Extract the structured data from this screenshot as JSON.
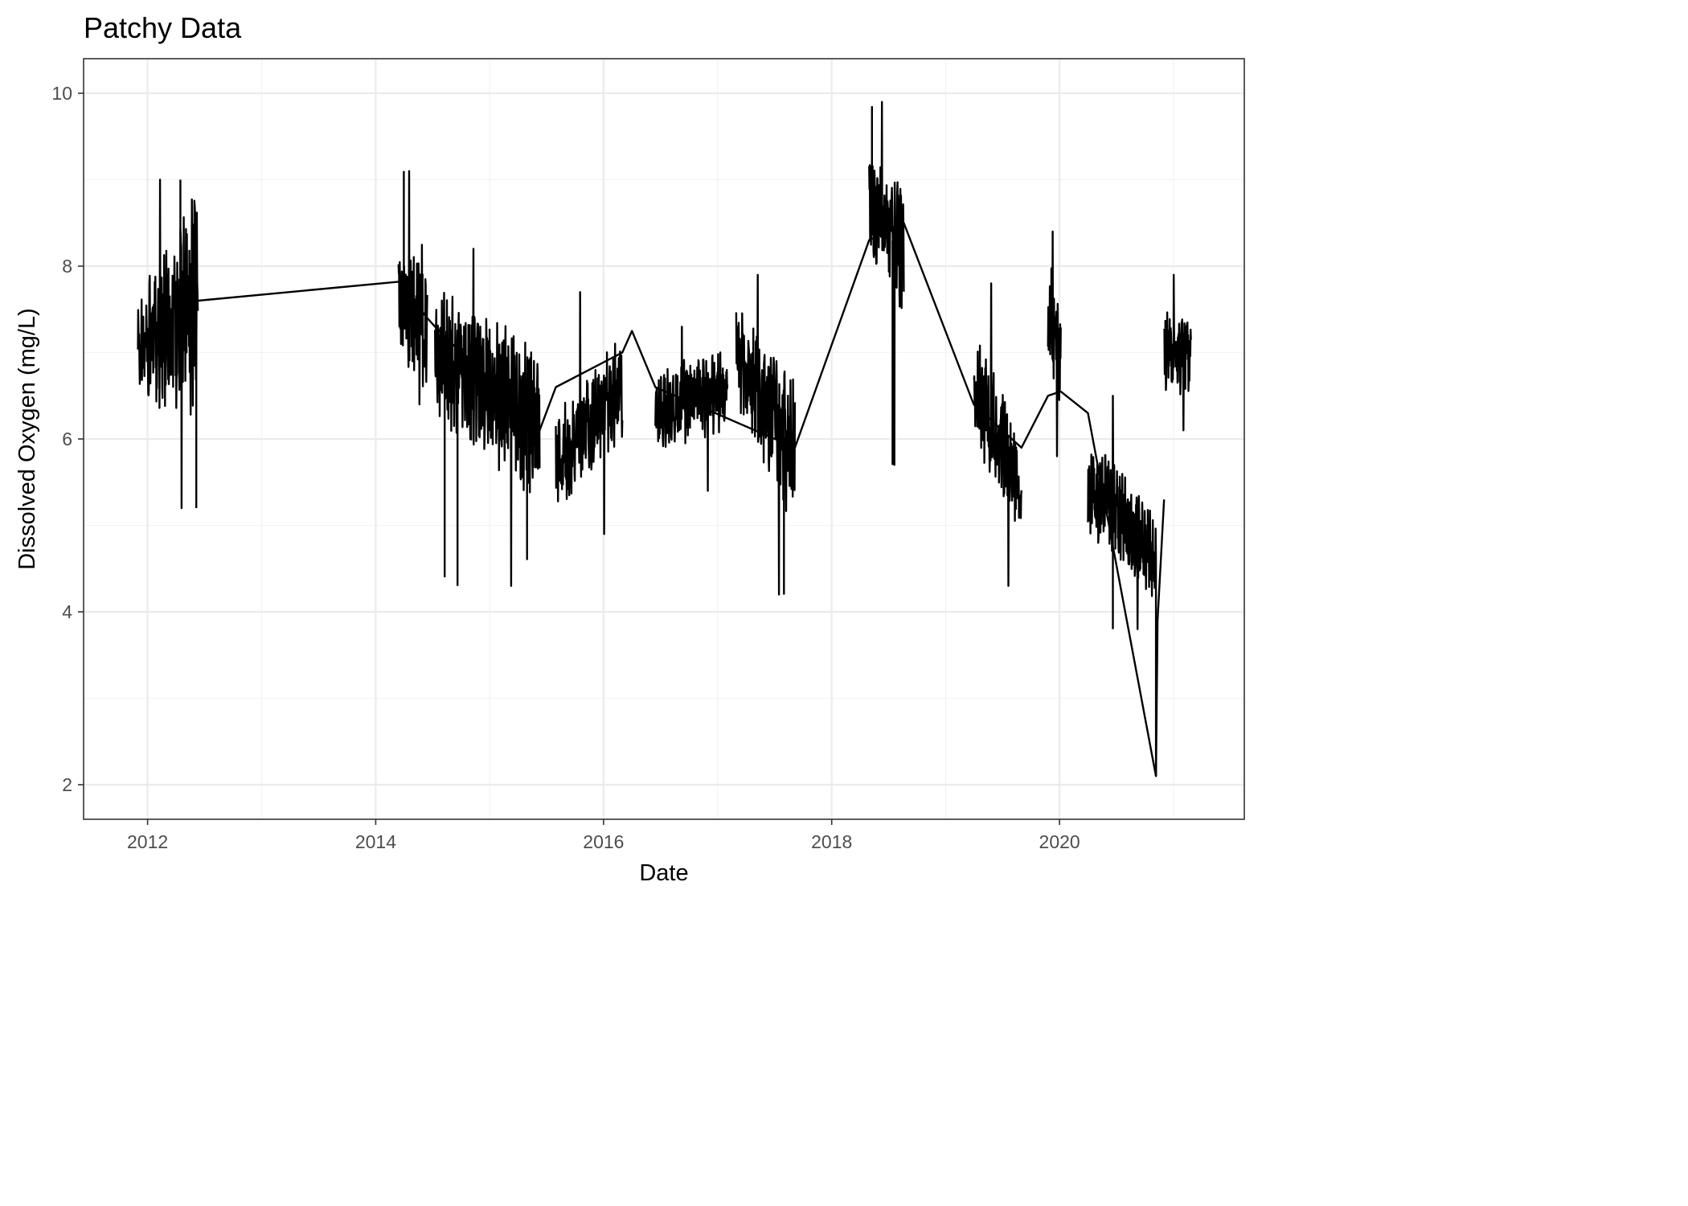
{
  "chart_data": {
    "type": "line",
    "title": "Patchy Data",
    "xlabel": "Date",
    "ylabel": "Dissolved Oxygen (mg/L)",
    "x_unit": "date",
    "xlim": [
      "2011-06-10",
      "2021-08-15"
    ],
    "ylim": [
      1.6,
      10.4
    ],
    "x_ticks": [
      {
        "value": "2012-01-01",
        "label": "2012"
      },
      {
        "value": "2014-01-01",
        "label": "2014"
      },
      {
        "value": "2016-01-01",
        "label": "2016"
      },
      {
        "value": "2018-01-01",
        "label": "2018"
      },
      {
        "value": "2020-01-01",
        "label": "2020"
      }
    ],
    "y_ticks": [
      2,
      4,
      6,
      8,
      10
    ],
    "grid": true,
    "legend": "none",
    "series": [
      {
        "color": "#000000",
        "segments": [
          {
            "start": "2011-12-01",
            "end": "2012-06-10",
            "mean": [
              7.0,
              7.6
            ],
            "amplitude": [
              0.5,
              1.1
            ],
            "min": 5.2,
            "max": 9.0
          },
          {
            "start": "2014-03-15",
            "end": "2014-06-15",
            "mean": [
              7.6,
              7.4
            ],
            "amplitude": [
              0.6,
              0.7
            ],
            "min": 6.4,
            "max": 9.1
          },
          {
            "start": "2014-07-10",
            "end": "2015-06-10",
            "mean": [
              7.0,
              6.2
            ],
            "amplitude": [
              0.6,
              0.8
            ],
            "min": 4.3,
            "max": 8.2
          },
          {
            "start": "2015-08-01",
            "end": "2016-03-01",
            "mean": [
              5.7,
              6.6
            ],
            "amplitude": [
              0.5,
              0.5
            ],
            "min": 4.9,
            "max": 7.7
          },
          {
            "start": "2016-06-15",
            "end": "2017-02-01",
            "mean": [
              6.3,
              6.6
            ],
            "amplitude": [
              0.4,
              0.4
            ],
            "min": 5.4,
            "max": 7.3
          },
          {
            "start": "2017-03-01",
            "end": "2017-09-05",
            "mean": [
              7.0,
              5.8
            ],
            "amplitude": [
              0.5,
              0.7
            ],
            "min": 4.2,
            "max": 7.9
          },
          {
            "start": "2018-05-01",
            "end": "2018-08-20",
            "mean": [
              8.7,
              8.1
            ],
            "amplitude": [
              0.6,
              0.7
            ],
            "min": 5.7,
            "max": 9.9
          },
          {
            "start": "2019-04-01",
            "end": "2019-09-01",
            "mean": [
              6.6,
              5.5
            ],
            "amplitude": [
              0.5,
              0.6
            ],
            "min": 4.3,
            "max": 7.8
          },
          {
            "start": "2019-11-25",
            "end": "2020-01-05",
            "mean": [
              7.5,
              6.9
            ],
            "amplitude": [
              0.6,
              0.6
            ],
            "min": 5.8,
            "max": 8.4
          },
          {
            "start": "2020-04-01",
            "end": "2020-11-05",
            "mean": [
              5.5,
              4.6
            ],
            "amplitude": [
              0.5,
              0.4
            ],
            "min": 3.8,
            "max": 6.5
          },
          {
            "start": "2020-12-01",
            "end": "2021-02-25",
            "mean": [
              7.0,
              7.0
            ],
            "amplitude": [
              0.4,
              0.4
            ],
            "min": 6.1,
            "max": 7.9
          }
        ],
        "connectors": [
          {
            "x": "2012-06-10",
            "y": 7.6
          },
          {
            "x": "2014-03-15",
            "y": 7.82
          },
          {
            "x": "2014-06-15",
            "y": 7.4
          },
          {
            "x": "2014-07-10",
            "y": 7.3
          },
          {
            "x": "2015-06-10",
            "y": 6.1
          },
          {
            "x": "2015-08-01",
            "y": 6.6
          },
          {
            "x": "2016-03-01",
            "y": 7.0
          },
          {
            "x": "2016-04-01",
            "y": 7.25
          },
          {
            "x": "2016-06-15",
            "y": 6.6
          },
          {
            "x": "2017-09-05",
            "y": 5.9
          },
          {
            "x": "2018-05-01",
            "y": 8.3
          },
          {
            "x": "2018-08-20",
            "y": 8.5
          },
          {
            "x": "2019-04-01",
            "y": 6.4
          },
          {
            "x": "2019-09-01",
            "y": 5.9
          },
          {
            "x": "2019-11-25",
            "y": 6.5
          },
          {
            "x": "2020-01-05",
            "y": 6.55
          },
          {
            "x": "2020-04-01",
            "y": 6.3
          },
          {
            "x": "2020-11-05",
            "y": 2.1
          },
          {
            "x": "2020-11-10",
            "y": 3.9
          },
          {
            "x": "2020-12-01",
            "y": 5.3
          }
        ],
        "notable_points": [
          {
            "x": "2012-04-15",
            "y": 9.0
          },
          {
            "x": "2012-06-05",
            "y": 5.2
          },
          {
            "x": "2014-04-01",
            "y": 9.1
          },
          {
            "x": "2014-08-10",
            "y": 4.4
          },
          {
            "x": "2014-09-20",
            "y": 4.3
          },
          {
            "x": "2015-05-01",
            "y": 4.6
          },
          {
            "x": "2017-08-01",
            "y": 4.2
          },
          {
            "x": "2018-05-10",
            "y": 9.85
          },
          {
            "x": "2018-07-15",
            "y": 5.7
          },
          {
            "x": "2020-06-20",
            "y": 3.8
          },
          {
            "x": "2020-11-05",
            "y": 2.1
          }
        ]
      }
    ]
  }
}
